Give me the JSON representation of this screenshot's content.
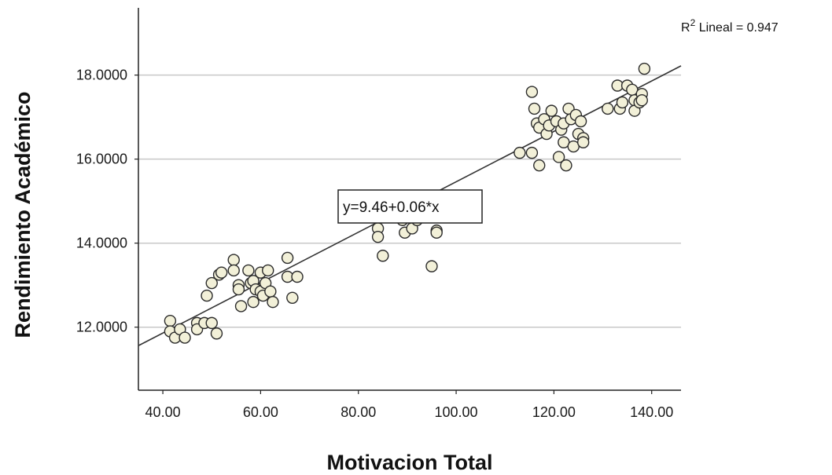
{
  "chart_data": {
    "type": "scatter",
    "xlabel": "Motivacion Total",
    "ylabel": "Rendimiento Académico",
    "xlim": [
      35,
      146
    ],
    "ylim": [
      10.5,
      19.6
    ],
    "x_ticks": [
      40,
      60,
      80,
      100,
      120,
      140
    ],
    "x_tick_labels": [
      "40.00",
      "60.00",
      "80.00",
      "100.00",
      "120.00",
      "140.00"
    ],
    "y_ticks": [
      12,
      14,
      16,
      18
    ],
    "y_tick_labels": [
      "12.0000",
      "14.0000",
      "16.0000",
      "18.0000"
    ],
    "grid": "horizontal",
    "fit_line": {
      "intercept": 9.46,
      "slope": 0.06,
      "label": "y=9.46+0.06*x"
    },
    "r2_annotation": {
      "prefix": "R",
      "superscript": "2",
      "text": " Lineal = 0.947"
    },
    "colors": {
      "marker_fill": "#f2f0d8",
      "marker_stroke": "#2b2b2b",
      "grid": "#c8c8c8",
      "line": "#333333"
    },
    "points": [
      [
        41.5,
        12.15
      ],
      [
        41.5,
        11.9
      ],
      [
        42.5,
        11.75
      ],
      [
        43.5,
        11.95
      ],
      [
        44.5,
        11.75
      ],
      [
        47,
        12.1
      ],
      [
        47,
        11.95
      ],
      [
        48.5,
        12.1
      ],
      [
        50,
        12.1
      ],
      [
        51,
        11.85
      ],
      [
        49,
        12.75
      ],
      [
        50,
        13.05
      ],
      [
        51.5,
        13.25
      ],
      [
        52,
        13.3
      ],
      [
        54.5,
        13.6
      ],
      [
        54.5,
        13.35
      ],
      [
        55.5,
        13.0
      ],
      [
        55.5,
        12.9
      ],
      [
        56,
        12.5
      ],
      [
        57.5,
        13.35
      ],
      [
        58,
        13.05
      ],
      [
        58.5,
        12.6
      ],
      [
        58.5,
        13.1
      ],
      [
        59,
        12.9
      ],
      [
        60,
        13.3
      ],
      [
        60,
        12.85
      ],
      [
        60.5,
        12.75
      ],
      [
        61,
        13.05
      ],
      [
        61.5,
        13.35
      ],
      [
        62,
        12.85
      ],
      [
        62.5,
        12.6
      ],
      [
        65.5,
        13.65
      ],
      [
        65.5,
        13.2
      ],
      [
        66.5,
        12.7
      ],
      [
        67.5,
        13.2
      ],
      [
        84,
        14.65
      ],
      [
        84,
        14.35
      ],
      [
        84,
        14.15
      ],
      [
        85,
        13.7
      ],
      [
        89,
        14.55
      ],
      [
        89.5,
        14.25
      ],
      [
        91,
        14.35
      ],
      [
        92,
        14.55
      ],
      [
        93,
        14.65
      ],
      [
        95,
        13.45
      ],
      [
        96,
        14.3
      ],
      [
        96,
        14.25
      ],
      [
        113,
        16.15
      ],
      [
        115.5,
        16.15
      ],
      [
        115.5,
        17.6
      ],
      [
        116,
        17.2
      ],
      [
        116.5,
        16.85
      ],
      [
        117,
        16.75
      ],
      [
        117,
        15.85
      ],
      [
        118,
        16.95
      ],
      [
        118.5,
        16.6
      ],
      [
        119,
        16.8
      ],
      [
        119.5,
        17.15
      ],
      [
        120.5,
        16.9
      ],
      [
        121,
        16.05
      ],
      [
        121.5,
        16.7
      ],
      [
        122,
        16.85
      ],
      [
        122,
        16.4
      ],
      [
        122.5,
        15.85
      ],
      [
        123,
        17.2
      ],
      [
        123.5,
        16.95
      ],
      [
        124,
        16.3
      ],
      [
        124.5,
        17.05
      ],
      [
        125,
        16.6
      ],
      [
        125.5,
        16.9
      ],
      [
        126,
        16.5
      ],
      [
        126,
        16.4
      ],
      [
        131,
        17.2
      ],
      [
        133,
        17.75
      ],
      [
        133.5,
        17.2
      ],
      [
        134,
        17.35
      ],
      [
        135,
        17.75
      ],
      [
        136,
        17.65
      ],
      [
        136.5,
        17.4
      ],
      [
        136.5,
        17.15
      ],
      [
        137.5,
        17.35
      ],
      [
        138,
        17.55
      ],
      [
        138,
        17.4
      ],
      [
        138.5,
        18.15
      ]
    ]
  }
}
